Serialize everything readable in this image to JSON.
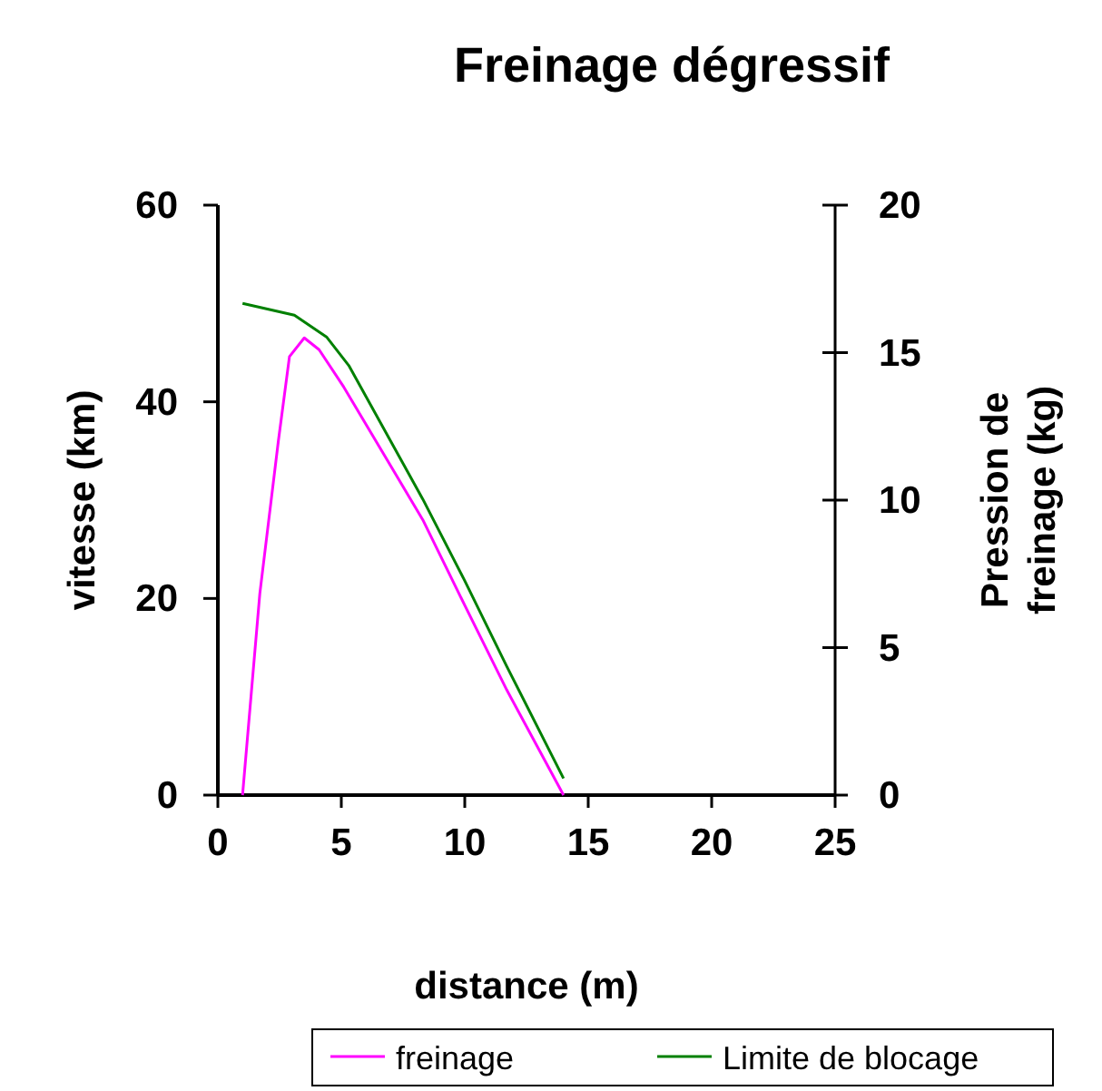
{
  "chart_data": {
    "type": "line",
    "title": "Freinage dégressif",
    "xlabel": "distance (m)",
    "ylabel": "vitesse (km)",
    "y2label": "Pression de freinage (kg)",
    "xlim": [
      0,
      25
    ],
    "xticks": [
      0,
      5,
      10,
      15,
      20,
      25
    ],
    "ylim": [
      0,
      60
    ],
    "yticks": [
      0,
      20,
      40,
      60
    ],
    "y2lim": [
      0,
      20
    ],
    "y2ticks": [
      0,
      5,
      10,
      15,
      20
    ],
    "grid": false,
    "legend": "bottom",
    "marker": "none",
    "line_style": "solid",
    "series": [
      {
        "name": "freinage",
        "color": "#ff00ff",
        "x": [
          1,
          1.7,
          2.45,
          2.9,
          3.5,
          4.1,
          5.1,
          8.3,
          10,
          11.7,
          14
        ],
        "values": [
          0,
          20.5,
          36,
          44.6,
          46.5,
          45.3,
          41.5,
          28,
          19.3,
          10.7,
          0
        ]
      },
      {
        "name": "Limite de blocage",
        "color": "#008000",
        "x": [
          1,
          3.1,
          4.4,
          5.3,
          8.3,
          10,
          11.7,
          14
        ],
        "values": [
          50,
          48.8,
          46.6,
          43.7,
          30.1,
          21.8,
          13.1,
          1.7
        ]
      }
    ]
  }
}
